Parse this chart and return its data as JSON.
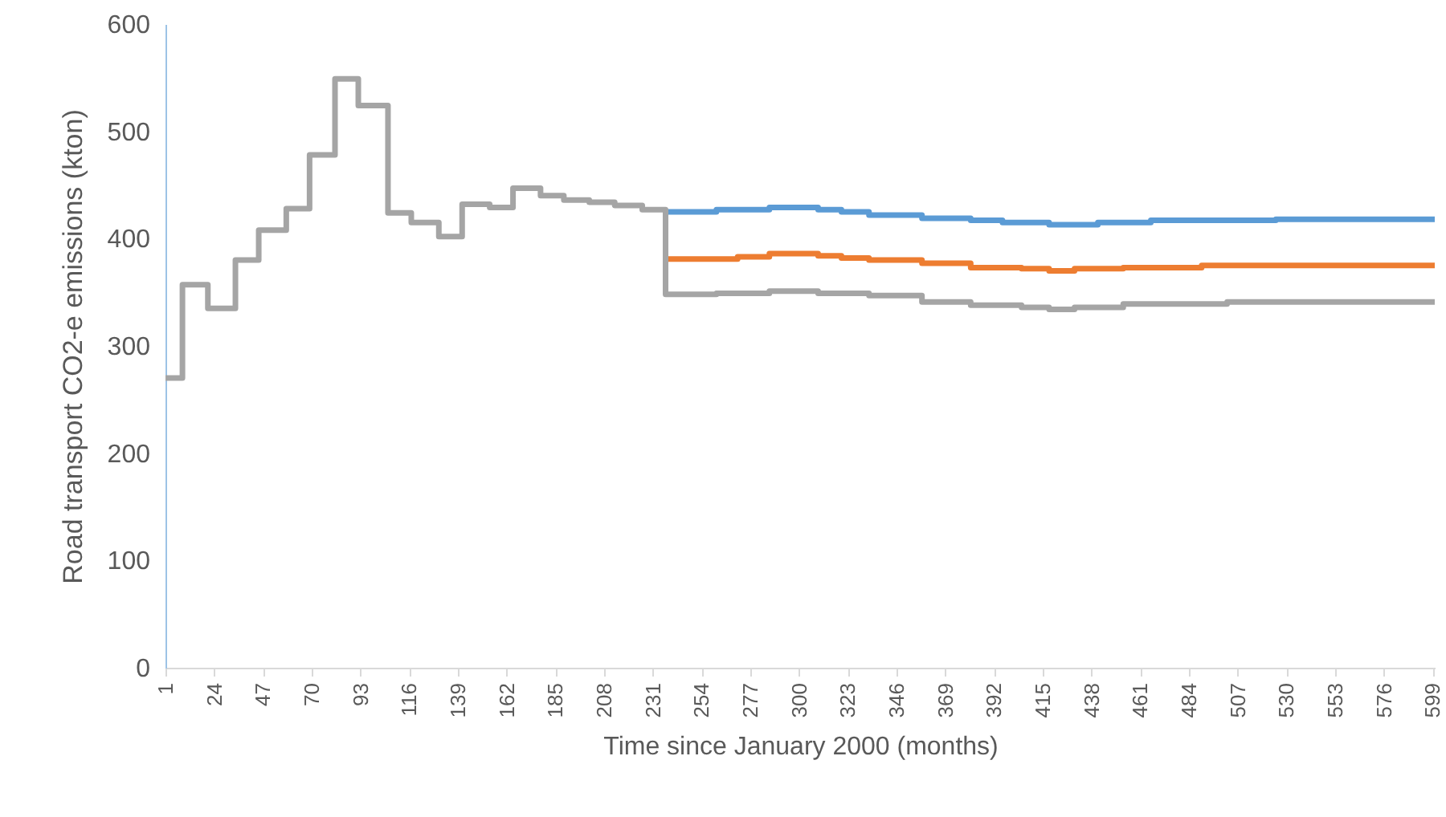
{
  "chart_data": {
    "type": "step",
    "xlabel": "Time since January 2000 (months)",
    "ylabel": "Road transport CO2-e emissions (kton)",
    "xlim": [
      1,
      600
    ],
    "ylim": [
      0,
      600
    ],
    "xticks": [
      1,
      24,
      47,
      70,
      93,
      116,
      139,
      162,
      185,
      208,
      231,
      254,
      277,
      300,
      323,
      346,
      369,
      392,
      415,
      438,
      461,
      484,
      507,
      530,
      553,
      576,
      599
    ],
    "yticks": [
      0,
      100,
      200,
      300,
      400,
      500,
      600
    ],
    "series": [
      {
        "color": "#5b9bd5",
        "x": [
          237,
          261,
          286,
          309,
          320,
          333,
          358,
          381,
          396,
          418,
          441,
          466,
          525,
          600
        ],
        "values": [
          425,
          427,
          429,
          427,
          425,
          422,
          419,
          417,
          415,
          413,
          415,
          417,
          418,
          418
        ]
      },
      {
        "color": "#ed7d31",
        "x": [
          237,
          271,
          286,
          309,
          320,
          333,
          358,
          381,
          405,
          418,
          430,
          453,
          490,
          600
        ],
        "values": [
          381,
          383,
          386,
          384,
          382,
          380,
          377,
          373,
          372,
          370,
          372,
          373,
          375,
          375
        ]
      },
      {
        "color": "#a5a5a5",
        "x": [
          1,
          9,
          21,
          34,
          45,
          58,
          69,
          81,
          92,
          106,
          117,
          130,
          141,
          154,
          165,
          178,
          189,
          201,
          213,
          226,
          237,
          261,
          286,
          309,
          333,
          358,
          381,
          405,
          418,
          430,
          453,
          502,
          600
        ],
        "values": [
          270,
          357,
          335,
          380,
          408,
          428,
          478,
          549,
          524,
          424,
          415,
          402,
          432,
          429,
          447,
          440,
          436,
          434,
          431,
          427,
          348,
          349,
          351,
          349,
          347,
          341,
          338,
          336,
          334,
          336,
          339,
          341,
          341
        ]
      }
    ]
  }
}
